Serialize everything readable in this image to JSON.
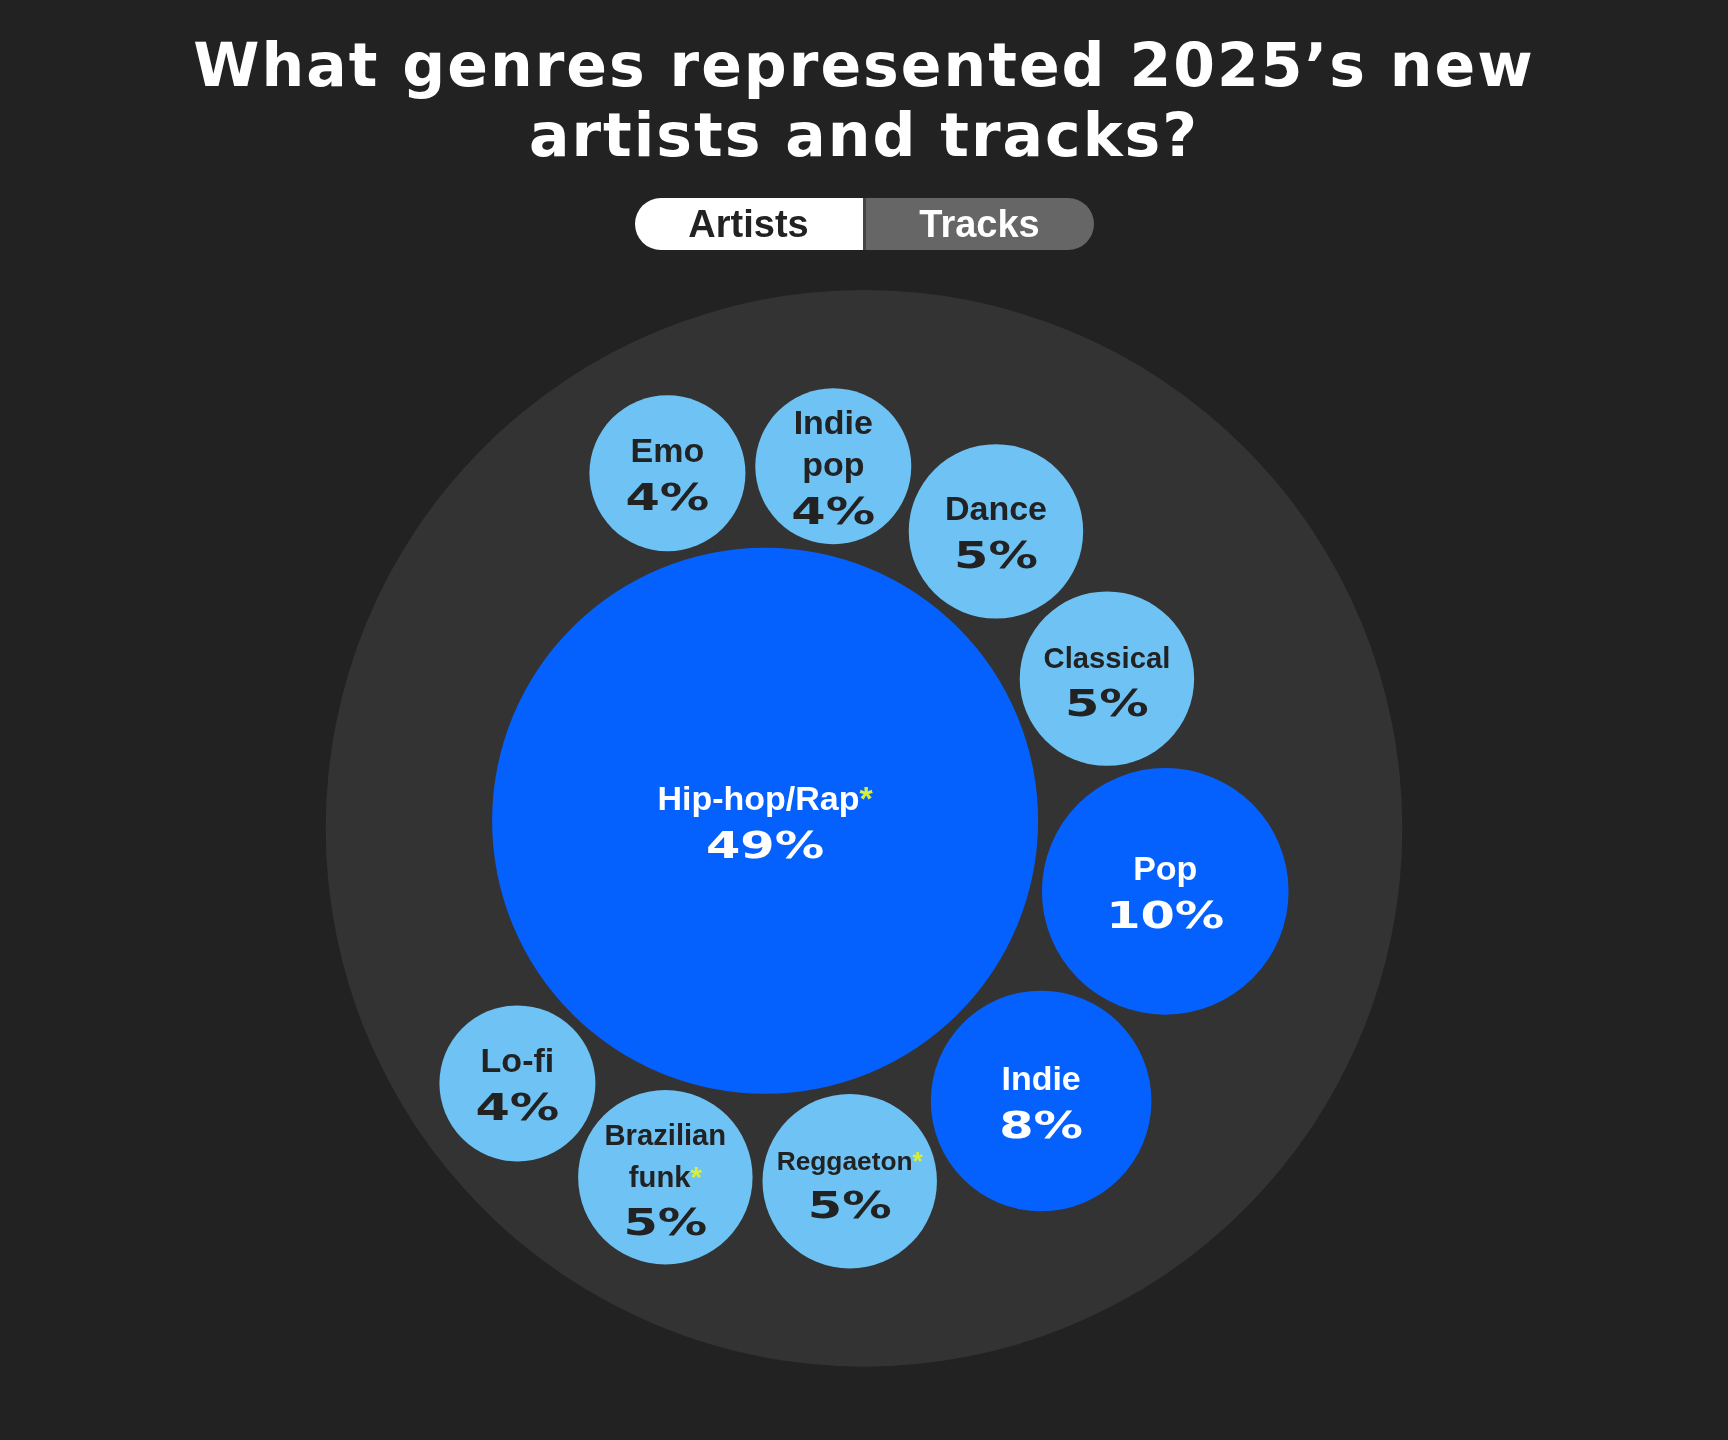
{
  "chart_data": {
    "type": "other",
    "title": "What genres represented 2025’s new artists and tracks?",
    "annotations": [
      "Artists",
      "Tracks"
    ],
    "categories": [
      "Classical",
      "Reggaeton*",
      "Dance",
      "Indie pop",
      "Hip-hop/Rap*",
      "Pop",
      "Lo-fi",
      "Indie",
      "Emo",
      "Brazilian funk*"
    ],
    "values": [
      5,
      5,
      5,
      4,
      49,
      10,
      4,
      8,
      4,
      5
    ],
    "value_labels": [
      "5%",
      "5%",
      "5%",
      "4%",
      "49%",
      "10%",
      "4%",
      "8%",
      "4%",
      "5%"
    ],
    "colors": [
      "#6ec3f4",
      "#6ec3f4",
      "#6ec3f4",
      "#6ec3f4",
      "#0561fe",
      "#0561fe",
      "#6ec3f4",
      "#0561fe",
      "#6ec3f4",
      "#6ec3f4"
    ]
  }
}
